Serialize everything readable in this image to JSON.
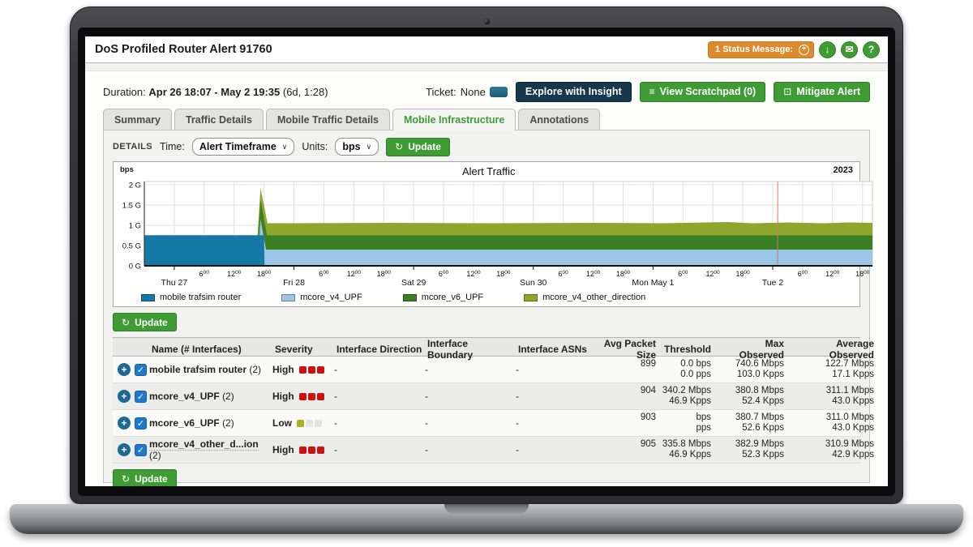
{
  "window_title": "DoS Profiled Router Alert 91760",
  "header": {
    "status_pill": "1 Status Message:",
    "status_add_glyph": "+",
    "download_glyph": "↓",
    "mail_glyph": "✉",
    "help_glyph": "?"
  },
  "alert_bar": {
    "duration_label": "Duration:",
    "duration_value": "Apr 26 18:07 - May 2 19:35",
    "duration_suffix": "(6d, 1:28)",
    "ticket_label": "Ticket:",
    "ticket_value": "None",
    "explore_button": "Explore with Insight",
    "scratchpad_button": "View Scratchpad (0)",
    "scratchpad_glyph": "≡",
    "mitigate_button": "Mitigate Alert",
    "mitigate_glyph": "⊡"
  },
  "tabs": [
    {
      "label": "Summary",
      "active": false
    },
    {
      "label": "Traffic Details",
      "active": false
    },
    {
      "label": "Mobile Traffic Details",
      "active": false
    },
    {
      "label": "Mobile Infrastructure",
      "active": true
    },
    {
      "label": "Annotations",
      "active": false
    }
  ],
  "controls": {
    "details_label": "DETAILS",
    "time_label": "Time:",
    "time_value": "Alert Timeframe",
    "units_label": "Units:",
    "units_value": "bps",
    "update_label": "Update",
    "update_glyph": "↻",
    "chevron_glyph": "∨"
  },
  "chart_data": {
    "type": "area",
    "title": "Alert Traffic",
    "year_label": "2023",
    "ylabel": "bps",
    "x_start": "Apr 26 18:00",
    "x_span_hours": 146,
    "ylim": [
      0,
      2.08
    ],
    "grid": true,
    "grid_hours_step": 6,
    "red_line_hour": 127,
    "yticks": [
      {
        "value": 2,
        "label": "2 G"
      },
      {
        "value": 1.5,
        "label": "1.5 G"
      },
      {
        "value": 1,
        "label": "1 G"
      },
      {
        "value": 0.5,
        "label": "0.5 G"
      },
      {
        "value": 0,
        "label": "0 G"
      }
    ],
    "day_ticks": [
      {
        "hour": 6,
        "label": "Thu 27"
      },
      {
        "hour": 30,
        "label": "Fri 28"
      },
      {
        "hour": 54,
        "label": "Sat 29"
      },
      {
        "hour": 78,
        "label": "Sun 30"
      },
      {
        "hour": 102,
        "label": "Mon May 1"
      },
      {
        "hour": 126,
        "label": "Tue 2"
      }
    ],
    "time_ticks": [
      {
        "hour": 12,
        "label": "6:00"
      },
      {
        "hour": 18,
        "label": "12:00"
      },
      {
        "hour": 24,
        "label": "18:00"
      },
      {
        "hour": 36,
        "label": "6:00"
      },
      {
        "hour": 42,
        "label": "12:00"
      },
      {
        "hour": 48,
        "label": "18:00"
      },
      {
        "hour": 60,
        "label": "6:00"
      },
      {
        "hour": 66,
        "label": "12:00"
      },
      {
        "hour": 72,
        "label": "18:00"
      },
      {
        "hour": 84,
        "label": "6:00"
      },
      {
        "hour": 90,
        "label": "12:00"
      },
      {
        "hour": 96,
        "label": "18:00"
      },
      {
        "hour": 108,
        "label": "6:00"
      },
      {
        "hour": 114,
        "label": "12:00"
      },
      {
        "hour": 120,
        "label": "18:00"
      },
      {
        "hour": 132,
        "label": "6:00"
      },
      {
        "hour": 138,
        "label": "12:00"
      },
      {
        "hour": 144,
        "label": "18:00"
      }
    ],
    "series": [
      {
        "name": "mcore_v4_other_direction",
        "color": "#8fa62c",
        "points": [
          [
            22.3,
            0
          ],
          [
            23.3,
            1.92
          ],
          [
            24.7,
            1.05
          ],
          [
            50,
            1.06
          ],
          [
            70,
            1.05
          ],
          [
            90,
            1.06
          ],
          [
            104,
            1.05
          ],
          [
            117,
            1.08
          ],
          [
            122,
            1.05
          ],
          [
            129,
            1.07
          ],
          [
            136,
            1.05
          ],
          [
            141,
            1.07
          ],
          [
            146,
            1.06
          ]
        ]
      },
      {
        "name": "mcore_v6_UPF",
        "color": "#3a7f24",
        "points": [
          [
            22.5,
            0
          ],
          [
            23.3,
            1.62
          ],
          [
            24.6,
            0.75
          ],
          [
            146,
            0.75
          ]
        ]
      },
      {
        "name": "mcore_v4_UPF",
        "color": "#9cc6e6",
        "points": [
          [
            22.7,
            0
          ],
          [
            23.3,
            1.15
          ],
          [
            24.4,
            0.4
          ],
          [
            146,
            0.4
          ]
        ]
      },
      {
        "name": "mobile trafsim router",
        "color": "#1579a6",
        "points": [
          [
            0,
            0.755
          ],
          [
            24.0,
            0.755
          ],
          [
            24.1,
            0
          ]
        ]
      }
    ],
    "legend": [
      {
        "label": "mobile trafsim router",
        "color": "#1579a6"
      },
      {
        "label": "mcore_v4_UPF",
        "color": "#9cc6e6"
      },
      {
        "label": "mcore_v6_UPF",
        "color": "#3a7f24"
      },
      {
        "label": "mcore_v4_other_direction",
        "color": "#8fa62c"
      }
    ]
  },
  "table": {
    "update_label": "Update",
    "update_glyph": "↻",
    "headers": [
      "",
      "Name (# Interfaces)",
      "Severity",
      "Interface Direction",
      "Interface Boundary",
      "Interface ASNs",
      "Avg Packet Size",
      "Threshold",
      "Max Observed",
      "Average Observed"
    ],
    "rows": [
      {
        "name": "mobile trafsim router",
        "suffix": "(2)",
        "truncated": false,
        "checked": true,
        "severity": "High",
        "dot_colors": [
          "#cc1111",
          "#cc1111",
          "#cc1111"
        ],
        "direction": "-",
        "boundary": "-",
        "asns": "-",
        "avg_packet_size": "899",
        "threshold": [
          "0.0 bps",
          "0.0 pps"
        ],
        "max_observed": [
          "740.6 Mbps",
          "103.0 Kpps"
        ],
        "average_observed": [
          "122.7 Mbps",
          "17.1 Kpps"
        ]
      },
      {
        "name": "mcore_v4_UPF",
        "suffix": "(2)",
        "truncated": false,
        "checked": true,
        "severity": "High",
        "dot_colors": [
          "#cc1111",
          "#cc1111",
          "#cc1111"
        ],
        "direction": "-",
        "boundary": "-",
        "asns": "-",
        "avg_packet_size": "904",
        "threshold": [
          "340.2 Mbps",
          "46.9 Kpps"
        ],
        "max_observed": [
          "380.8 Mbps",
          "52.4 Kpps"
        ],
        "average_observed": [
          "311.1 Mbps",
          "43.0 Kpps"
        ]
      },
      {
        "name": "mcore_v6_UPF",
        "suffix": "(2)",
        "truncated": false,
        "checked": true,
        "severity": "Low",
        "dot_colors": [
          "#a8b41f",
          "#e3e3e1",
          "#e3e3e1"
        ],
        "direction": "-",
        "boundary": "-",
        "asns": "-",
        "avg_packet_size": "903",
        "threshold": [
          "bps",
          "pps"
        ],
        "max_observed": [
          "380.7 Mbps",
          "52.6 Kpps"
        ],
        "average_observed": [
          "311.0 Mbps",
          "43.0 Kpps"
        ]
      },
      {
        "name": "mcore_v4_other_d...ion",
        "suffix": "(2)",
        "truncated": true,
        "checked": true,
        "severity": "High",
        "dot_colors": [
          "#cc1111",
          "#cc1111",
          "#cc1111"
        ],
        "direction": "-",
        "boundary": "-",
        "asns": "-",
        "avg_packet_size": "905",
        "threshold": [
          "335.8 Mbps",
          "46.9 Kpps"
        ],
        "max_observed": [
          "382.9 Mbps",
          "52.3 Kpps"
        ],
        "average_observed": [
          "310.9 Mbps",
          "42.9 Kpps"
        ]
      }
    ]
  }
}
